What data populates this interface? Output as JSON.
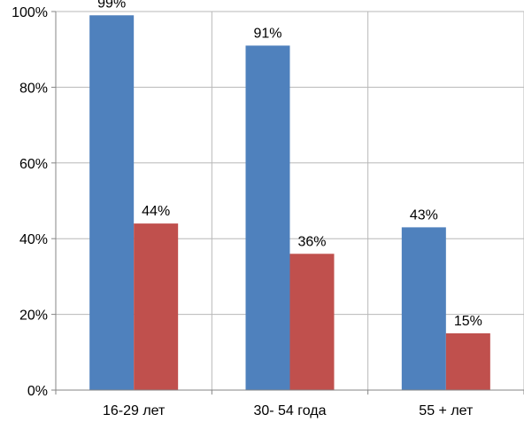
{
  "chart_data": {
    "type": "bar",
    "categories": [
      "16-29 лет",
      "30- 54 года",
      "55 + лет"
    ],
    "series": [
      {
        "values": [
          99,
          91,
          43
        ],
        "labels": [
          "99%",
          "91%",
          "43%"
        ],
        "color": "#4f81bd"
      },
      {
        "values": [
          44,
          36,
          15
        ],
        "labels": [
          "44%",
          "36%",
          "15%"
        ],
        "color": "#c0504d"
      }
    ],
    "ylim": [
      0,
      100
    ],
    "yticks": [
      0,
      20,
      40,
      60,
      80,
      100
    ],
    "ytick_labels": [
      "0%",
      "20%",
      "40%",
      "60%",
      "80%",
      "100%"
    ],
    "grid": true,
    "legend": "none"
  }
}
